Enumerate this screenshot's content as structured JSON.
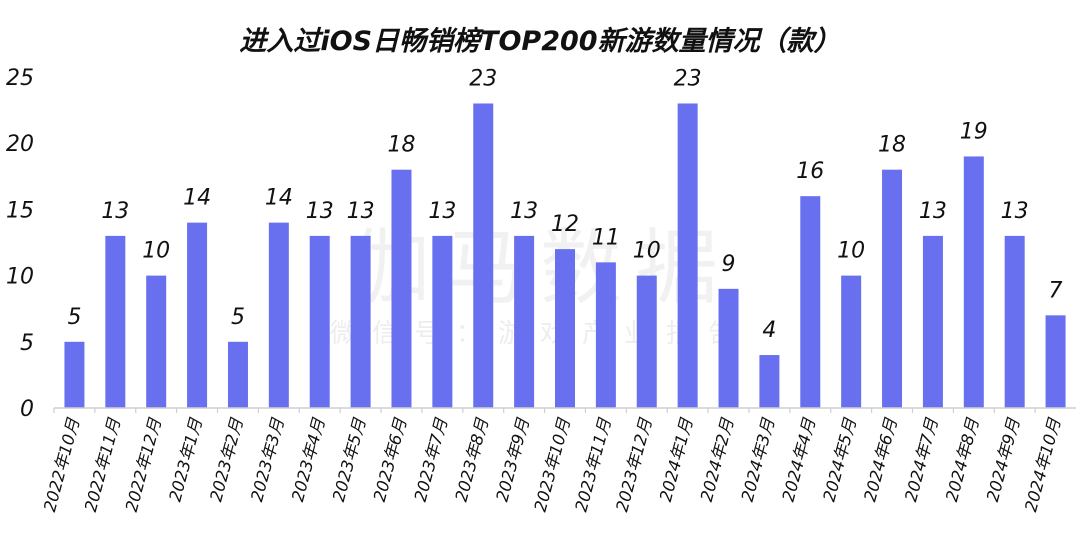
{
  "watermark": {
    "main": "伽马数据",
    "sub": "微信号：游戏产业报告"
  },
  "chart_data": {
    "type": "bar",
    "title": "进入过iOS日畅销榜TOP200新游数量情况（款）",
    "categories": [
      "2022年10月",
      "2022年11月",
      "2022年12月",
      "2023年1月",
      "2023年2月",
      "2023年3月",
      "2023年4月",
      "2023年5月",
      "2023年6月",
      "2023年7月",
      "2023年8月",
      "2023年9月",
      "2023年10月",
      "2023年11月",
      "2023年12月",
      "2024年1月",
      "2024年2月",
      "2024年3月",
      "2024年4月",
      "2024年5月",
      "2024年6月",
      "2024年7月",
      "2024年8月",
      "2024年9月",
      "2024年10月"
    ],
    "values": [
      5,
      13,
      10,
      14,
      5,
      14,
      13,
      13,
      18,
      13,
      23,
      13,
      12,
      11,
      10,
      23,
      9,
      4,
      16,
      10,
      18,
      13,
      19,
      13,
      7
    ],
    "xlabel": "",
    "ylabel": "",
    "ylim": [
      0,
      25
    ],
    "yticks": [
      0,
      5,
      10,
      15,
      20,
      25
    ],
    "bar_color": "#6870f0",
    "grid": false,
    "data_labels": true
  }
}
